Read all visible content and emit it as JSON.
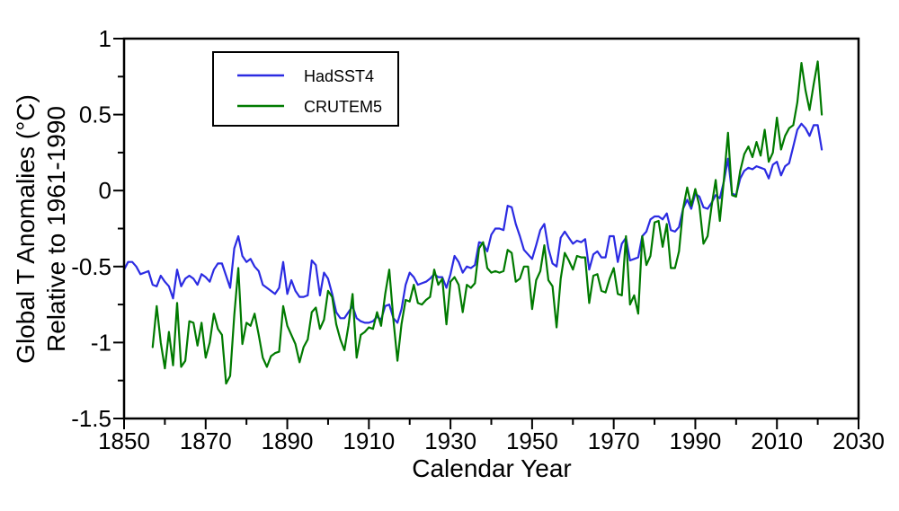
{
  "chart_data": {
    "type": "line",
    "title": "",
    "xlabel": "Calendar Year",
    "ylabel_line1": "Global T Anomalies (°C)",
    "ylabel_line2": "Relative to 1961-1990",
    "xlim": [
      1850,
      2030
    ],
    "ylim": [
      -1.5,
      1
    ],
    "grid": false,
    "legend_position": "top-left",
    "x_axis": {
      "major_ticks": [
        1850,
        1870,
        1890,
        1910,
        1930,
        1950,
        1970,
        1990,
        2010,
        2030
      ],
      "major_tick_labels": [
        "1850",
        "1870",
        "1890",
        "1910",
        "1930",
        "1950",
        "1970",
        "1990",
        "2010",
        "2030"
      ],
      "minor_ticks": [
        1860,
        1880,
        1900,
        1920,
        1940,
        1960,
        1980,
        2000,
        2020
      ]
    },
    "y_axis": {
      "major_ticks": [
        1,
        0.5,
        0,
        -0.5,
        -1,
        -1.5
      ],
      "major_tick_labels": [
        "1",
        "0.5",
        "0",
        "-0.5",
        "-1",
        "-1.5"
      ],
      "minor_ticks": [
        0.75,
        0.25,
        -0.25,
        -0.75,
        -1.25
      ]
    },
    "series": [
      {
        "name": "HadSST4",
        "color": "#2b2be2",
        "start_year": 1850,
        "end_year": 2021,
        "values": [
          -0.52,
          -0.47,
          -0.47,
          -0.5,
          -0.55,
          -0.54,
          -0.53,
          -0.62,
          -0.63,
          -0.56,
          -0.6,
          -0.63,
          -0.71,
          -0.52,
          -0.63,
          -0.58,
          -0.56,
          -0.58,
          -0.62,
          -0.55,
          -0.57,
          -0.6,
          -0.52,
          -0.48,
          -0.48,
          -0.56,
          -0.64,
          -0.38,
          -0.3,
          -0.43,
          -0.47,
          -0.45,
          -0.5,
          -0.53,
          -0.62,
          -0.64,
          -0.66,
          -0.68,
          -0.64,
          -0.47,
          -0.68,
          -0.59,
          -0.66,
          -0.7,
          -0.7,
          -0.69,
          -0.46,
          -0.49,
          -0.69,
          -0.54,
          -0.58,
          -0.68,
          -0.8,
          -0.84,
          -0.84,
          -0.8,
          -0.76,
          -0.84,
          -0.86,
          -0.87,
          -0.87,
          -0.86,
          -0.83,
          -0.85,
          -0.76,
          -0.75,
          -0.84,
          -0.87,
          -0.78,
          -0.62,
          -0.54,
          -0.57,
          -0.62,
          -0.61,
          -0.6,
          -0.58,
          -0.55,
          -0.57,
          -0.57,
          -0.64,
          -0.55,
          -0.43,
          -0.47,
          -0.54,
          -0.5,
          -0.51,
          -0.49,
          -0.34,
          -0.35,
          -0.4,
          -0.29,
          -0.25,
          -0.25,
          -0.26,
          -0.1,
          -0.11,
          -0.22,
          -0.3,
          -0.39,
          -0.42,
          -0.45,
          -0.36,
          -0.26,
          -0.22,
          -0.38,
          -0.48,
          -0.5,
          -0.31,
          -0.27,
          -0.31,
          -0.35,
          -0.33,
          -0.34,
          -0.32,
          -0.52,
          -0.42,
          -0.4,
          -0.44,
          -0.44,
          -0.3,
          -0.3,
          -0.47,
          -0.35,
          -0.31,
          -0.46,
          -0.45,
          -0.44,
          -0.3,
          -0.27,
          -0.19,
          -0.17,
          -0.17,
          -0.19,
          -0.15,
          -0.26,
          -0.27,
          -0.24,
          -0.12,
          -0.06,
          -0.12,
          -0.02,
          -0.04,
          -0.11,
          -0.12,
          -0.08,
          -0.03,
          -0.05,
          0.06,
          0.21,
          -0.02,
          -0.03,
          0.08,
          0.13,
          0.15,
          0.14,
          0.16,
          0.15,
          0.14,
          0.08,
          0.17,
          0.19,
          0.1,
          0.16,
          0.18,
          0.29,
          0.4,
          0.44,
          0.41,
          0.36,
          0.43,
          0.43,
          0.27
        ]
      },
      {
        "name": "CRUTEM5",
        "color": "#007a00",
        "start_year": 1857,
        "end_year": 2021,
        "values": [
          -1.03,
          -0.76,
          -1.0,
          -1.17,
          -0.93,
          -1.15,
          -0.74,
          -1.16,
          -1.12,
          -0.86,
          -0.87,
          -1.02,
          -0.87,
          -1.1,
          -1.0,
          -0.81,
          -0.91,
          -0.95,
          -1.27,
          -1.22,
          -0.82,
          -0.51,
          -1.01,
          -0.87,
          -0.89,
          -0.81,
          -0.95,
          -1.1,
          -1.16,
          -1.09,
          -1.07,
          -1.06,
          -0.76,
          -0.89,
          -0.95,
          -1.01,
          -1.13,
          -1.03,
          -0.98,
          -0.8,
          -0.77,
          -0.91,
          -0.85,
          -0.66,
          -0.7,
          -0.88,
          -0.98,
          -1.05,
          -0.89,
          -0.68,
          -1.1,
          -0.95,
          -0.93,
          -0.9,
          -0.91,
          -0.8,
          -0.89,
          -0.68,
          -0.52,
          -0.85,
          -1.12,
          -0.88,
          -0.72,
          -0.73,
          -0.62,
          -0.74,
          -0.75,
          -0.72,
          -0.7,
          -0.52,
          -0.62,
          -0.58,
          -0.88,
          -0.6,
          -0.57,
          -0.62,
          -0.8,
          -0.62,
          -0.64,
          -0.61,
          -0.38,
          -0.34,
          -0.51,
          -0.54,
          -0.53,
          -0.54,
          -0.53,
          -0.39,
          -0.41,
          -0.6,
          -0.58,
          -0.5,
          -0.5,
          -0.78,
          -0.59,
          -0.53,
          -0.36,
          -0.59,
          -0.63,
          -0.9,
          -0.58,
          -0.41,
          -0.46,
          -0.52,
          -0.43,
          -0.44,
          -0.44,
          -0.74,
          -0.56,
          -0.55,
          -0.66,
          -0.67,
          -0.58,
          -0.51,
          -0.68,
          -0.69,
          -0.3,
          -0.75,
          -0.69,
          -0.81,
          -0.3,
          -0.49,
          -0.43,
          -0.21,
          -0.2,
          -0.37,
          -0.22,
          -0.51,
          -0.51,
          -0.4,
          -0.12,
          0.02,
          -0.1,
          0.01,
          -0.1,
          -0.35,
          -0.3,
          -0.1,
          0.07,
          -0.2,
          0.07,
          0.38,
          -0.03,
          -0.04,
          0.13,
          0.24,
          0.29,
          0.22,
          0.32,
          0.23,
          0.4,
          0.19,
          0.25,
          0.48,
          0.27,
          0.36,
          0.41,
          0.43,
          0.58,
          0.84,
          0.66,
          0.53,
          0.7,
          0.85,
          0.5
        ]
      }
    ]
  },
  "colors": {
    "background": "#ffffff",
    "axis": "#000000",
    "hadsst4": "#2b2be2",
    "crutem5": "#007a00"
  }
}
